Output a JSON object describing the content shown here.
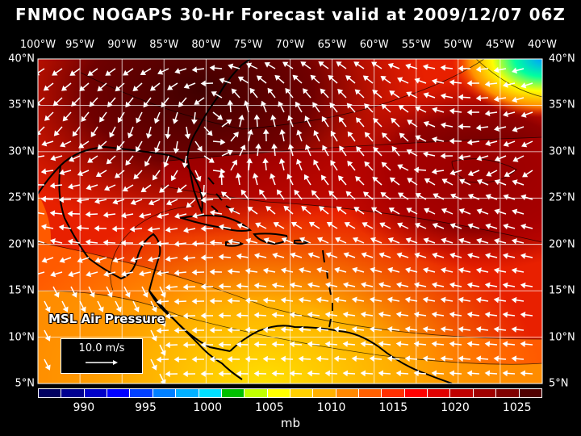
{
  "title": "FNMOC NOGAPS 30-Hr Forecast valid at 2009/12/07 06Z",
  "longitude_labels": [
    "100°W",
    "95°W",
    "90°W",
    "85°W",
    "80°W",
    "75°W",
    "70°W",
    "65°W",
    "60°W",
    "55°W",
    "50°W",
    "45°W",
    "40°W"
  ],
  "latitude_labels": [
    "40°N",
    "35°N",
    "30°N",
    "25°N",
    "20°N",
    "15°N",
    "10°N",
    "5°N"
  ],
  "map_extent": {
    "lon_min": -100,
    "lon_max": -40,
    "lat_min": 5,
    "lat_max": 40
  },
  "parameter_label": "MSL Air Pressure",
  "reference_vector": {
    "label": "10.0 m/s",
    "speed": 10.0
  },
  "colorbar": {
    "colors": [
      "#000060",
      "#000090",
      "#0000c8",
      "#0000ff",
      "#0040ff",
      "#0080ff",
      "#00b0ff",
      "#00e0ff",
      "#00c000",
      "#c0ff00",
      "#ffff00",
      "#ffd000",
      "#ffb000",
      "#ff8800",
      "#ff6000",
      "#ff3000",
      "#ff0000",
      "#e00000",
      "#c00000",
      "#a00000",
      "#800000",
      "#500000"
    ],
    "tick_labels": [
      "990",
      "995",
      "1000",
      "1005",
      "1010",
      "1015",
      "1020",
      "1025"
    ],
    "units": "mb"
  }
}
